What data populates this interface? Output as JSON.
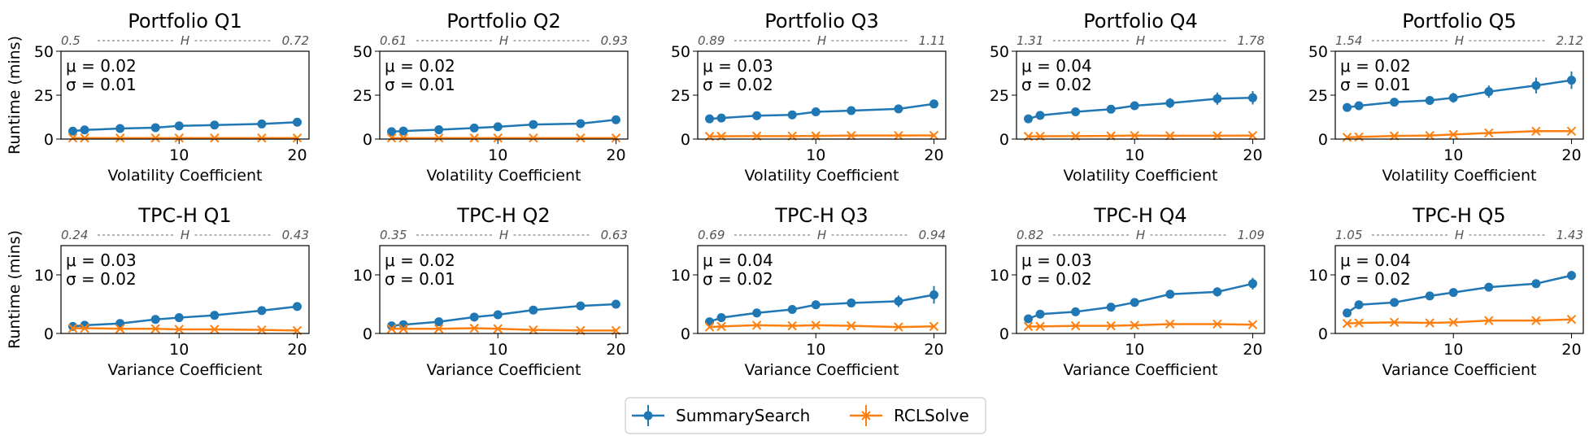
{
  "colors": {
    "series_a": "#1f77b4",
    "series_b": "#ff7f0e"
  },
  "figure": {
    "ylabel": "Runtime (mins)",
    "legend": [
      "SummarySearch",
      "RCLSolve"
    ]
  },
  "chart_data": [
    {
      "type": "line",
      "title": "Portfolio Q1",
      "xlabel": "Volatility Coefficient",
      "ylim": [
        0,
        50
      ],
      "yticks": [
        0,
        25,
        50
      ],
      "xticks": [
        10,
        20
      ],
      "h_left": "0.5",
      "h_mid": "H",
      "h_right": "0.72",
      "stat_mu": "μ = 0.02",
      "stat_sigma": "σ = 0.01",
      "x": [
        1,
        2,
        5,
        8,
        10,
        13,
        17,
        20
      ],
      "series": [
        {
          "name": "SummarySearch",
          "values": [
            4.5,
            5.2,
            6.0,
            6.5,
            7.5,
            8.0,
            8.6,
            9.6
          ],
          "err": [
            0.3,
            0.3,
            0.3,
            0.4,
            0.4,
            0.4,
            0.5,
            0.5
          ]
        },
        {
          "name": "RCLSolve",
          "values": [
            0.6,
            0.6,
            0.6,
            0.6,
            0.6,
            0.6,
            0.6,
            0.6
          ],
          "err": [
            0.1,
            0.1,
            0.1,
            0.1,
            0.1,
            0.1,
            0.1,
            0.1
          ]
        }
      ]
    },
    {
      "type": "line",
      "title": "Portfolio Q2",
      "xlabel": "Volatility Coefficient",
      "ylim": [
        0,
        50
      ],
      "yticks": [
        0,
        25,
        50
      ],
      "xticks": [
        10,
        20
      ],
      "h_left": "0.61",
      "h_mid": "H",
      "h_right": "0.93",
      "stat_mu": "μ = 0.02",
      "stat_sigma": "σ = 0.01",
      "x": [
        1,
        2,
        5,
        8,
        10,
        13,
        17,
        20
      ],
      "series": [
        {
          "name": "SummarySearch",
          "values": [
            4.2,
            4.6,
            5.3,
            6.3,
            7.0,
            8.3,
            8.8,
            11.0
          ],
          "err": [
            0.3,
            0.3,
            0.3,
            0.3,
            0.4,
            0.4,
            0.4,
            0.5
          ]
        },
        {
          "name": "RCLSolve",
          "values": [
            0.6,
            0.6,
            0.6,
            0.6,
            0.6,
            0.6,
            0.6,
            0.6
          ],
          "err": [
            0.1,
            0.1,
            0.1,
            0.1,
            0.1,
            0.1,
            0.1,
            0.1
          ]
        }
      ]
    },
    {
      "type": "line",
      "title": "Portfolio Q3",
      "xlabel": "Volatility Coefficient",
      "ylim": [
        0,
        50
      ],
      "yticks": [
        0,
        25,
        50
      ],
      "xticks": [
        10,
        20
      ],
      "h_left": "0.89",
      "h_mid": "H",
      "h_right": "1.11",
      "stat_mu": "μ = 0.03",
      "stat_sigma": "σ = 0.02",
      "x": [
        1,
        2,
        5,
        8,
        10,
        13,
        17,
        20
      ],
      "series": [
        {
          "name": "SummarySearch",
          "values": [
            11.5,
            12.0,
            13.3,
            13.8,
            15.5,
            16.2,
            17.2,
            20.0
          ],
          "err": [
            0.5,
            0.5,
            0.6,
            0.6,
            0.7,
            0.7,
            0.8,
            0.9
          ]
        },
        {
          "name": "RCLSolve",
          "values": [
            1.5,
            1.6,
            1.7,
            1.7,
            1.8,
            2.0,
            2.0,
            2.1
          ],
          "err": [
            0.2,
            0.2,
            0.2,
            0.2,
            0.2,
            0.2,
            0.2,
            0.2
          ]
        }
      ]
    },
    {
      "type": "line",
      "title": "Portfolio Q4",
      "xlabel": "Volatility Coefficient",
      "ylim": [
        0,
        50
      ],
      "yticks": [
        0,
        25,
        50
      ],
      "xticks": [
        10,
        20
      ],
      "h_left": "1.31",
      "h_mid": "H",
      "h_right": "1.78",
      "stat_mu": "μ = 0.04",
      "stat_sigma": "σ = 0.02",
      "x": [
        1,
        2,
        5,
        8,
        10,
        13,
        17,
        20
      ],
      "series": [
        {
          "name": "SummarySearch",
          "values": [
            11.5,
            13.5,
            15.5,
            17.0,
            19.0,
            20.5,
            23.0,
            23.5
          ],
          "err": [
            0.6,
            0.8,
            1.2,
            1.8,
            2.3,
            2.8,
            3.5,
            3.8
          ]
        },
        {
          "name": "RCLSolve",
          "values": [
            1.5,
            1.6,
            1.7,
            1.8,
            2.0,
            1.9,
            1.9,
            2.0
          ],
          "err": [
            0.2,
            0.2,
            0.2,
            0.2,
            0.2,
            0.2,
            0.2,
            0.2
          ]
        }
      ]
    },
    {
      "type": "line",
      "title": "Portfolio Q5",
      "xlabel": "Volatility Coefficient",
      "ylim": [
        0,
        50
      ],
      "yticks": [
        0,
        25,
        50
      ],
      "xticks": [
        10,
        20
      ],
      "h_left": "1.54",
      "h_mid": "H",
      "h_right": "2.12",
      "stat_mu": "μ = 0.02",
      "stat_sigma": "σ = 0.01",
      "x": [
        1,
        2,
        5,
        8,
        10,
        13,
        17,
        20
      ],
      "series": [
        {
          "name": "SummarySearch",
          "values": [
            18.0,
            19.0,
            21.0,
            22.0,
            23.5,
            27.0,
            30.5,
            33.5
          ],
          "err": [
            0.8,
            1.0,
            1.5,
            2.0,
            2.8,
            3.5,
            4.5,
            5.0
          ]
        },
        {
          "name": "RCLSolve",
          "values": [
            1.0,
            1.2,
            1.8,
            2.0,
            2.6,
            3.5,
            4.5,
            4.5
          ],
          "err": [
            0.2,
            0.2,
            0.3,
            0.3,
            0.4,
            0.5,
            0.6,
            0.6
          ]
        }
      ]
    },
    {
      "type": "line",
      "title": "TPC-H Q1",
      "xlabel": "Variance Coefficient",
      "ylim": [
        0,
        15
      ],
      "yticks": [
        0,
        10
      ],
      "xticks": [
        10,
        20
      ],
      "h_left": "0.24",
      "h_mid": "H",
      "h_right": "0.43",
      "stat_mu": "μ = 0.03",
      "stat_sigma": "σ = 0.02",
      "x": [
        1,
        2,
        5,
        8,
        10,
        13,
        17,
        20
      ],
      "series": [
        {
          "name": "SummarySearch",
          "values": [
            1.2,
            1.4,
            1.7,
            2.4,
            2.7,
            3.1,
            3.9,
            4.6
          ],
          "err": [
            0.1,
            0.1,
            0.15,
            0.15,
            0.2,
            0.2,
            0.2,
            0.25
          ]
        },
        {
          "name": "RCLSolve",
          "values": [
            0.9,
            0.9,
            0.8,
            0.8,
            0.7,
            0.7,
            0.6,
            0.5
          ],
          "err": [
            0.1,
            0.1,
            0.1,
            0.1,
            0.1,
            0.1,
            0.1,
            0.1
          ]
        }
      ]
    },
    {
      "type": "line",
      "title": "TPC-H Q2",
      "xlabel": "Variance Coefficient",
      "ylim": [
        0,
        15
      ],
      "yticks": [
        0,
        10
      ],
      "xticks": [
        10,
        20
      ],
      "h_left": "0.35",
      "h_mid": "H",
      "h_right": "0.63",
      "stat_mu": "μ = 0.02",
      "stat_sigma": "σ = 0.01",
      "x": [
        1,
        2,
        5,
        8,
        10,
        13,
        17,
        20
      ],
      "series": [
        {
          "name": "SummarySearch",
          "values": [
            1.3,
            1.5,
            2.0,
            2.8,
            3.2,
            4.0,
            4.7,
            5.0
          ],
          "err": [
            0.1,
            0.1,
            0.15,
            0.15,
            0.2,
            0.2,
            0.2,
            0.25
          ]
        },
        {
          "name": "RCLSolve",
          "values": [
            0.8,
            0.8,
            0.8,
            0.9,
            0.8,
            0.6,
            0.5,
            0.5
          ],
          "err": [
            0.1,
            0.1,
            0.1,
            0.1,
            0.1,
            0.1,
            0.1,
            0.1
          ]
        }
      ]
    },
    {
      "type": "line",
      "title": "TPC-H Q3",
      "xlabel": "Variance Coefficient",
      "ylim": [
        0,
        15
      ],
      "yticks": [
        0,
        10
      ],
      "xticks": [
        10,
        20
      ],
      "h_left": "0.69",
      "h_mid": "H",
      "h_right": "0.94",
      "stat_mu": "μ = 0.04",
      "stat_sigma": "σ = 0.02",
      "x": [
        1,
        2,
        5,
        8,
        10,
        13,
        17,
        20
      ],
      "series": [
        {
          "name": "SummarySearch",
          "values": [
            2.0,
            2.7,
            3.5,
            4.1,
            4.9,
            5.2,
            5.5,
            6.6
          ],
          "err": [
            0.2,
            0.3,
            0.3,
            0.4,
            0.5,
            0.6,
            1.0,
            1.5
          ]
        },
        {
          "name": "RCLSolve",
          "values": [
            1.1,
            1.2,
            1.4,
            1.3,
            1.4,
            1.3,
            1.1,
            1.2
          ],
          "err": [
            0.1,
            0.1,
            0.1,
            0.1,
            0.1,
            0.1,
            0.1,
            0.1
          ]
        }
      ]
    },
    {
      "type": "line",
      "title": "TPC-H Q4",
      "xlabel": "Variance Coefficient",
      "ylim": [
        0,
        15
      ],
      "yticks": [
        0,
        10
      ],
      "xticks": [
        10,
        20
      ],
      "h_left": "0.82",
      "h_mid": "H",
      "h_right": "1.09",
      "stat_mu": "μ = 0.03",
      "stat_sigma": "σ = 0.02",
      "x": [
        1,
        2,
        5,
        8,
        10,
        13,
        17,
        20
      ],
      "series": [
        {
          "name": "SummarySearch",
          "values": [
            2.5,
            3.3,
            3.7,
            4.5,
            5.3,
            6.7,
            7.1,
            8.5
          ],
          "err": [
            0.2,
            0.3,
            0.3,
            0.3,
            0.4,
            0.5,
            0.8,
            1.0
          ]
        },
        {
          "name": "RCLSolve",
          "values": [
            1.2,
            1.2,
            1.3,
            1.3,
            1.4,
            1.6,
            1.6,
            1.5
          ],
          "err": [
            0.1,
            0.1,
            0.1,
            0.1,
            0.1,
            0.1,
            0.1,
            0.1
          ]
        }
      ]
    },
    {
      "type": "line",
      "title": "TPC-H Q5",
      "xlabel": "Variance Coefficient",
      "ylim": [
        0,
        15
      ],
      "yticks": [
        0,
        10
      ],
      "xticks": [
        10,
        20
      ],
      "h_left": "1.05",
      "h_mid": "H",
      "h_right": "1.43",
      "stat_mu": "μ = 0.04",
      "stat_sigma": "σ = 0.02",
      "x": [
        1,
        2,
        5,
        8,
        10,
        13,
        17,
        20
      ],
      "series": [
        {
          "name": "SummarySearch",
          "values": [
            3.5,
            4.9,
            5.3,
            6.4,
            7.0,
            7.9,
            8.5,
            9.9
          ],
          "err": [
            0.3,
            0.3,
            0.4,
            0.4,
            0.4,
            0.5,
            0.6,
            0.8
          ]
        },
        {
          "name": "RCLSolve",
          "values": [
            1.7,
            1.8,
            1.9,
            1.8,
            1.9,
            2.2,
            2.2,
            2.4
          ],
          "err": [
            0.1,
            0.1,
            0.1,
            0.1,
            0.1,
            0.1,
            0.1,
            0.1
          ]
        }
      ]
    }
  ]
}
